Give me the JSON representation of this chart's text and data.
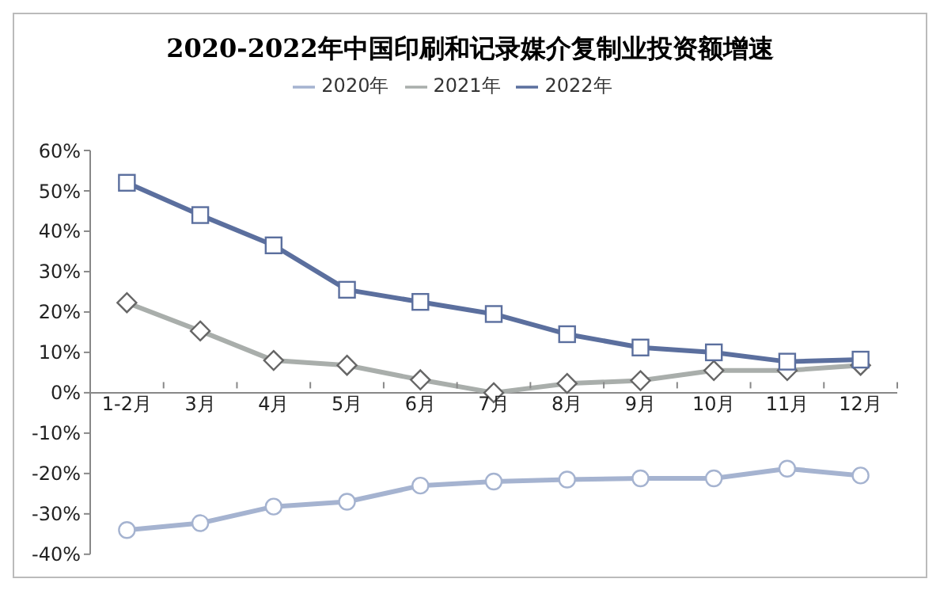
{
  "chart_data": {
    "type": "line",
    "title": "2020-2022年中国印刷和记录媒介复制业投资额增速",
    "categories": [
      "1-2月",
      "3月",
      "4月",
      "5月",
      "6月",
      "7月",
      "8月",
      "9月",
      "10月",
      "11月",
      "12月"
    ],
    "series": [
      {
        "name": "2020年",
        "color": "#a5b3d0",
        "marker": "circle",
        "values": [
          -34,
          -32.3,
          -28.2,
          -27,
          -23,
          -22,
          -21.5,
          -21.2,
          -21.2,
          -18.8,
          -20.5
        ]
      },
      {
        "name": "2021年",
        "color": "#a9aeab",
        "marker": "diamond",
        "values": [
          22.3,
          15.3,
          8,
          6.8,
          3.2,
          0,
          2.3,
          3,
          5.5,
          5.5,
          6.8
        ]
      },
      {
        "name": "2022年",
        "color": "#5b6f9e",
        "marker": "square",
        "values": [
          52,
          44,
          36.5,
          25.5,
          22.5,
          19.5,
          14.5,
          11.2,
          10,
          7.7,
          8.2
        ]
      }
    ],
    "ylim": [
      -40,
      60
    ],
    "yticks": [
      {
        "value": -40,
        "label": "-40%"
      },
      {
        "value": -30,
        "label": "-30%"
      },
      {
        "value": -20,
        "label": "-20%"
      },
      {
        "value": -10,
        "label": "-10%"
      },
      {
        "value": 0,
        "label": "0%"
      },
      {
        "value": 10,
        "label": "10%"
      },
      {
        "value": 20,
        "label": "20%"
      },
      {
        "value": 30,
        "label": "30%"
      },
      {
        "value": 40,
        "label": "40%"
      },
      {
        "value": 50,
        "label": "50%"
      },
      {
        "value": 60,
        "label": "60%"
      }
    ],
    "grid": false,
    "legend": "top",
    "line_style": "solid"
  }
}
